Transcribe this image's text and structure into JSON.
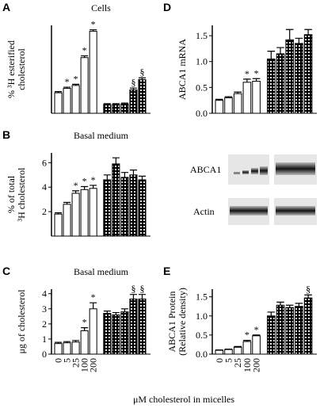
{
  "chart_data": [
    {
      "type": "bar",
      "panel": "A",
      "title": "Cells",
      "ylabel": [
        "% ³H esterified",
        "cholesterol"
      ],
      "ylim": [
        0,
        30
      ],
      "series": [
        {
          "color": "#ffffff",
          "values": [
            7,
            8.5,
            9.5,
            19,
            28
          ],
          "errors": [
            0.4,
            0.4,
            0.4,
            0.6,
            0.5
          ],
          "markers": [
            null,
            "*",
            "*",
            "*",
            "*"
          ]
        },
        {
          "color": "#000000",
          "pattern": "checker",
          "values": [
            3,
            3,
            3.2,
            8,
            11.5
          ],
          "errors": [
            0.3,
            0.3,
            0.3,
            0.6,
            0.6
          ],
          "markers": [
            null,
            null,
            null,
            "§",
            "§"
          ]
        }
      ]
    },
    {
      "type": "bar",
      "panel": "B",
      "title": "Basal medium",
      "ylabel": [
        "% of total",
        "³H cholesterol"
      ],
      "ylim": [
        0,
        6.8
      ],
      "yticks": [
        2,
        4,
        6
      ],
      "series": [
        {
          "color": "#ffffff",
          "values": [
            1.8,
            2.6,
            3.5,
            3.8,
            3.9
          ],
          "errors": [
            0.1,
            0.15,
            0.2,
            0.25,
            0.25
          ],
          "markers": [
            null,
            null,
            "*",
            "*",
            "*"
          ]
        },
        {
          "color": "#000000",
          "pattern": "checker",
          "values": [
            4.6,
            5.9,
            4.8,
            5.0,
            4.6
          ],
          "errors": [
            0.4,
            0.5,
            0.4,
            0.4,
            0.3
          ],
          "markers": [
            null,
            null,
            null,
            null,
            null
          ]
        }
      ]
    },
    {
      "type": "bar",
      "panel": "C",
      "title": "Basal medium",
      "ylabel": [
        "μg of cholesterol"
      ],
      "ylim": [
        0,
        4.3
      ],
      "yticks": [
        0,
        1,
        2,
        3,
        4
      ],
      "categories": [
        "0",
        "5",
        "25",
        "100",
        "200"
      ],
      "series": [
        {
          "color": "#ffffff",
          "values": [
            0.7,
            0.75,
            0.8,
            1.55,
            3.0
          ],
          "errors": [
            0.08,
            0.08,
            0.1,
            0.2,
            0.4
          ],
          "markers": [
            null,
            null,
            null,
            "*",
            "*"
          ]
        },
        {
          "color": "#000000",
          "pattern": "checker",
          "values": [
            2.7,
            2.6,
            2.8,
            3.65,
            3.65
          ],
          "errors": [
            0.15,
            0.15,
            0.2,
            0.3,
            0.3
          ],
          "markers": [
            null,
            null,
            null,
            "§",
            "§"
          ]
        }
      ]
    },
    {
      "type": "bar",
      "panel": "D",
      "ylabel": [
        "ABCA1 mRNA"
      ],
      "ylim": [
        0,
        1.7
      ],
      "yticks": [
        {
          "value": 0,
          "label": "0.0"
        },
        0.5,
        {
          "value": 1,
          "label": "1.0"
        },
        1.5
      ],
      "series": [
        {
          "color": "#ffffff",
          "values": [
            0.25,
            0.3,
            0.38,
            0.6,
            0.62
          ],
          "errors": [
            0.02,
            0.02,
            0.03,
            0.06,
            0.05
          ],
          "markers": [
            null,
            null,
            null,
            "*",
            "*"
          ]
        },
        {
          "color": "#000000",
          "pattern": "checker",
          "values": [
            1.05,
            1.15,
            1.42,
            1.35,
            1.52
          ],
          "errors": [
            0.15,
            0.12,
            0.2,
            0.1,
            0.1
          ],
          "markers": [
            null,
            null,
            null,
            null,
            null
          ]
        }
      ]
    },
    {
      "type": "bar",
      "panel": "E",
      "ylabel": [
        "ABCA1 Protein",
        "(Relative density)"
      ],
      "ylim": [
        0,
        1.7
      ],
      "yticks": [
        {
          "value": 0,
          "label": "0.0"
        },
        0.5,
        {
          "value": 1,
          "label": "1.0"
        },
        1.5
      ],
      "categories": [
        "0",
        "5",
        "25",
        "100",
        "200"
      ],
      "series": [
        {
          "color": "#ffffff",
          "values": [
            0.1,
            0.12,
            0.18,
            0.33,
            0.48
          ],
          "errors": [
            0.01,
            0.01,
            0.02,
            0.03,
            0.02
          ],
          "markers": [
            null,
            null,
            null,
            "*",
            "*"
          ]
        },
        {
          "color": "#000000",
          "pattern": "checker",
          "values": [
            1.0,
            1.28,
            1.22,
            1.25,
            1.47
          ],
          "errors": [
            0.1,
            0.08,
            0.06,
            0.08,
            0.08
          ],
          "markers": [
            null,
            null,
            null,
            null,
            "§"
          ]
        }
      ]
    }
  ],
  "xlabel": "μM cholesterol in micelles",
  "blot": {
    "labels": [
      "ABCA1",
      "Actin"
    ]
  }
}
